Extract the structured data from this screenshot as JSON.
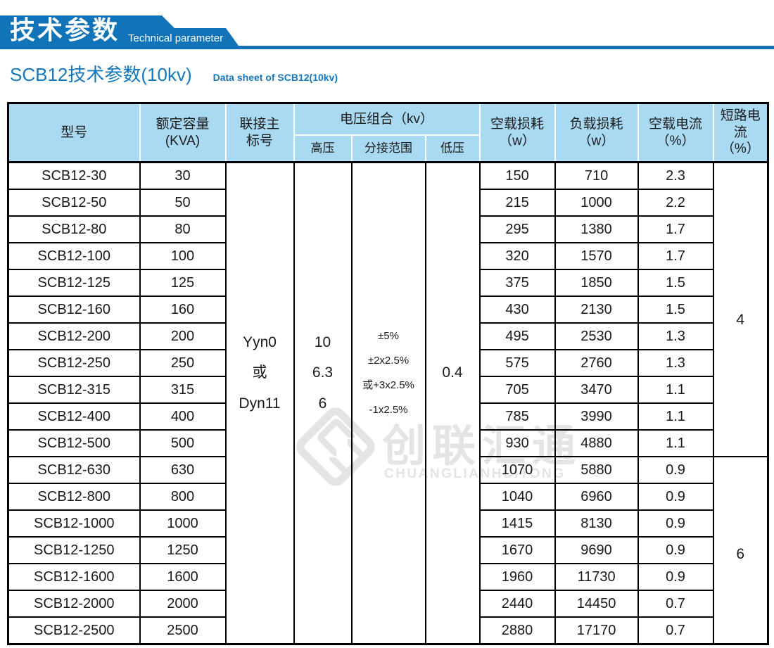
{
  "banner": {
    "title_cn": "技术参数",
    "title_en": "Technical parameter"
  },
  "page_title": {
    "cn": "SCB12技术参数(10kv)",
    "en": "Data sheet of SCB12(10kv)"
  },
  "watermark": {
    "text_cn": "创联汇通",
    "text_en": "CHUANGLIANHUITONG"
  },
  "colors": {
    "brand_blue": "#1173b8",
    "title_blue": "#1578be",
    "header_bg": "#aadaf2",
    "border": "#000000",
    "watermark_gray": "#e4e4e4"
  },
  "table": {
    "headers": {
      "model": "型号",
      "capacity": "额定容量\n(KVA)",
      "vector_group": "联接主\n标号",
      "voltage_group": "电压组合（kv）",
      "hv": "高压",
      "tap_range": "分接范围",
      "lv": "低压",
      "no_load_loss": "空载损耗\n（w）",
      "load_loss": "负载损耗\n（w）",
      "no_load_current": "空载电流\n（%）",
      "short_circuit": "短路电流\n（%）"
    },
    "merged": {
      "vector": "Yyn0\n或\nDyn11",
      "hv": "10\n6.3\n6",
      "tap": "±5%\n±2x2.5%\n或+3x2.5%\n-1x2.5%",
      "lv": "0.4",
      "short_circuit_group1": "4",
      "short_circuit_group2": "6"
    },
    "rows": [
      {
        "model": "SCB12-30",
        "capacity": "30",
        "no_load_loss": "150",
        "load_loss": "710",
        "no_load_current": "2.3"
      },
      {
        "model": "SCB12-50",
        "capacity": "50",
        "no_load_loss": "215",
        "load_loss": "1000",
        "no_load_current": "2.2"
      },
      {
        "model": "SCB12-80",
        "capacity": "80",
        "no_load_loss": "295",
        "load_loss": "1380",
        "no_load_current": "1.7"
      },
      {
        "model": "SCB12-100",
        "capacity": "100",
        "no_load_loss": "320",
        "load_loss": "1570",
        "no_load_current": "1.7"
      },
      {
        "model": "SCB12-125",
        "capacity": "125",
        "no_load_loss": "375",
        "load_loss": "1850",
        "no_load_current": "1.5"
      },
      {
        "model": "SCB12-160",
        "capacity": "160",
        "no_load_loss": "430",
        "load_loss": "2130",
        "no_load_current": "1.5"
      },
      {
        "model": "SCB12-200",
        "capacity": "200",
        "no_load_loss": "495",
        "load_loss": "2530",
        "no_load_current": "1.3"
      },
      {
        "model": "SCB12-250",
        "capacity": "250",
        "no_load_loss": "575",
        "load_loss": "2760",
        "no_load_current": "1.3"
      },
      {
        "model": "SCB12-315",
        "capacity": "315",
        "no_load_loss": "705",
        "load_loss": "3470",
        "no_load_current": "1.1"
      },
      {
        "model": "SCB12-400",
        "capacity": "400",
        "no_load_loss": "785",
        "load_loss": "3990",
        "no_load_current": "1.1"
      },
      {
        "model": "SCB12-500",
        "capacity": "500",
        "no_load_loss": "930",
        "load_loss": "4880",
        "no_load_current": "1.1"
      },
      {
        "model": "SCB12-630",
        "capacity": "630",
        "no_load_loss": "1070",
        "load_loss": "5880",
        "no_load_current": "0.9"
      },
      {
        "model": "SCB12-800",
        "capacity": "800",
        "no_load_loss": "1040",
        "load_loss": "6960",
        "no_load_current": "0.9"
      },
      {
        "model": "SCB12-1000",
        "capacity": "1000",
        "no_load_loss": "1415",
        "load_loss": "8130",
        "no_load_current": "0.9"
      },
      {
        "model": "SCB12-1250",
        "capacity": "1250",
        "no_load_loss": "1670",
        "load_loss": "9690",
        "no_load_current": "0.9"
      },
      {
        "model": "SCB12-1600",
        "capacity": "1600",
        "no_load_loss": "1960",
        "load_loss": "11730",
        "no_load_current": "0.9"
      },
      {
        "model": "SCB12-2000",
        "capacity": "2000",
        "no_load_loss": "2440",
        "load_loss": "14450",
        "no_load_current": "0.7"
      },
      {
        "model": "SCB12-2500",
        "capacity": "2500",
        "no_load_loss": "2880",
        "load_loss": "17170",
        "no_load_current": "0.7"
      }
    ]
  }
}
